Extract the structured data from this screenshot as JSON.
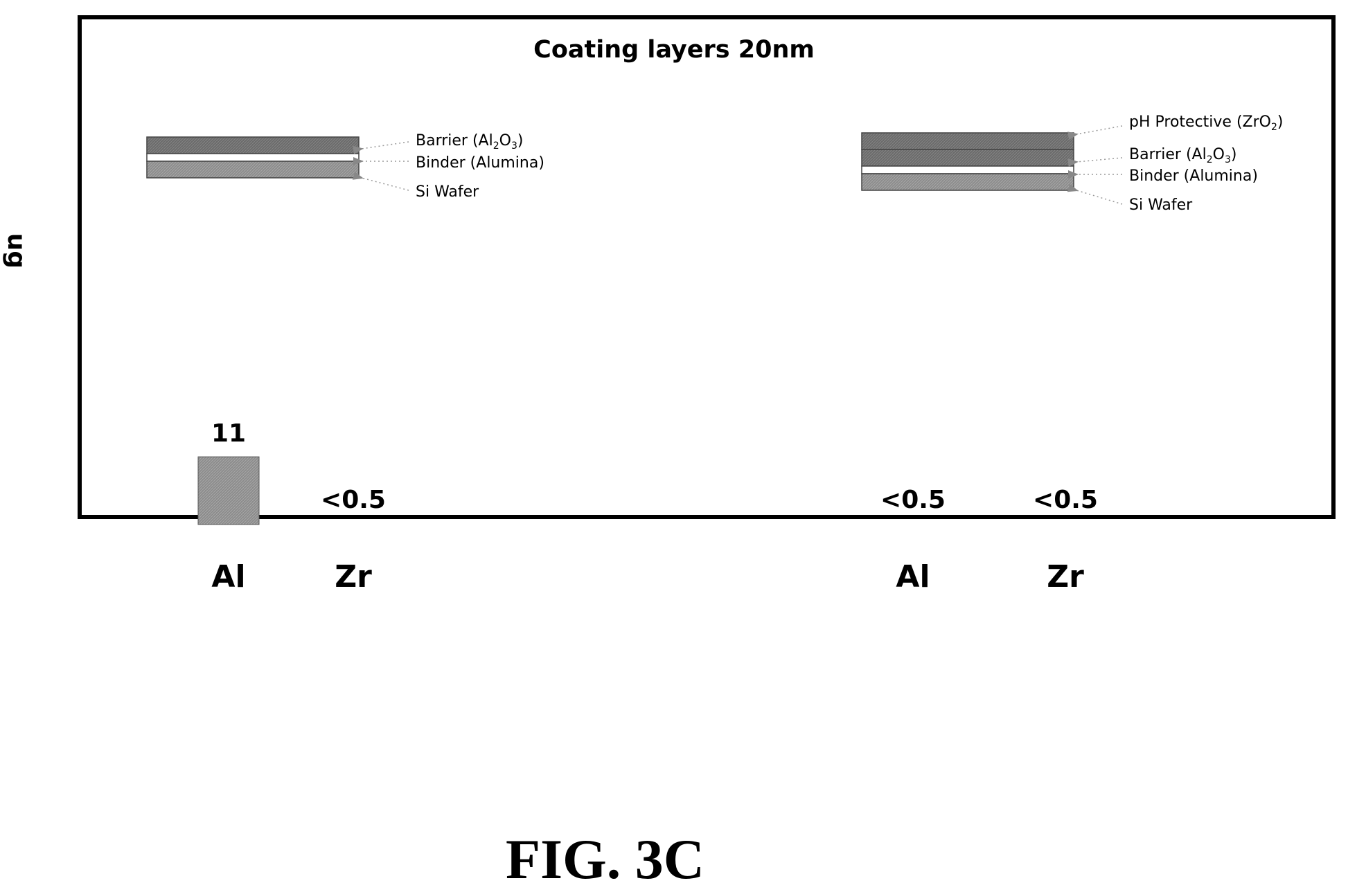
{
  "chart_data": {
    "type": "bar",
    "title": "Coating layers 20nm",
    "ylabel": "ug",
    "groups": [
      {
        "categories": [
          "Al",
          "Zr"
        ],
        "values": [
          11,
          0.5
        ],
        "value_labels": [
          "11",
          "<0.5"
        ],
        "layers": [
          "Barrier (Al2O3)",
          "Binder (Alumina)",
          "Si Wafer"
        ]
      },
      {
        "categories": [
          "Al",
          "Zr"
        ],
        "values": [
          0.5,
          0.5
        ],
        "value_labels": [
          "<0.5",
          "<0.5"
        ],
        "layers": [
          "pH Protective (ZrO2)",
          "Barrier (Al2O3)",
          "Binder (Alumina)",
          "Si Wafer"
        ]
      }
    ],
    "ylim": [
      0,
      60
    ]
  },
  "figure_label": "FIG. 3C",
  "colors": {
    "bar": "#8c8c8c",
    "layer_dark": "#6e6e6e",
    "layer_light": "#ffffff"
  }
}
